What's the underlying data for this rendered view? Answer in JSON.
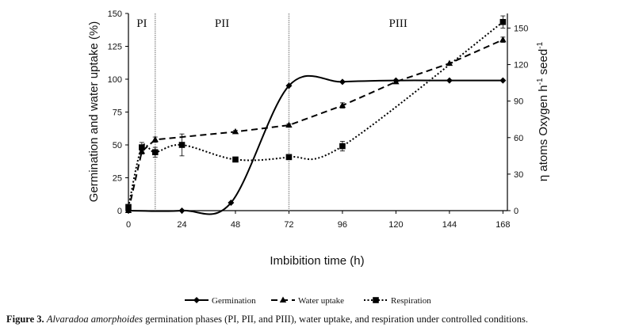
{
  "chart_data": {
    "type": "line",
    "xlabel": "Imbibition time (h)",
    "ylabel_left": "Germination and water uptake  (%)",
    "ylabel_right": "η atoms Oxygen h⁻¹ seed⁻¹",
    "x_ticks": [
      0,
      24,
      48,
      72,
      96,
      120,
      144,
      168
    ],
    "y_left_ticks": [
      0,
      25,
      50,
      75,
      100,
      125,
      150
    ],
    "y_right_ticks": [
      0,
      30,
      60,
      90,
      120,
      150
    ],
    "xlim": [
      0,
      170
    ],
    "ylim_left": [
      0,
      150
    ],
    "ylim_right": [
      0,
      162
    ],
    "phases": [
      {
        "label": "PI",
        "x_start": 0,
        "x_end": 12
      },
      {
        "label": "PII",
        "x_start": 12,
        "x_end": 72
      },
      {
        "label": "PIII",
        "x_start": 72,
        "x_end": 170
      }
    ],
    "series": [
      {
        "name": "Germination",
        "axis": "left",
        "marker": "diamond",
        "style": "solid",
        "smooth": true,
        "x": [
          0,
          24,
          46,
          72,
          96,
          120,
          144,
          168
        ],
        "y": [
          0,
          0,
          6,
          95,
          98,
          99,
          99,
          99
        ]
      },
      {
        "name": "Water uptake",
        "axis": "left",
        "marker": "triangle",
        "style": "dashed",
        "smooth": false,
        "x": [
          0,
          6,
          12,
          48,
          72,
          96,
          120,
          144,
          168
        ],
        "y": [
          0,
          45,
          54,
          60,
          65,
          80,
          98,
          112,
          130
        ],
        "yerr": [
          0,
          2,
          2,
          1,
          1,
          2,
          0,
          0,
          2
        ]
      },
      {
        "name": "Respiration",
        "axis": "right",
        "marker": "square",
        "style": "dotted",
        "smooth": true,
        "x": [
          0,
          6,
          12,
          24,
          48,
          72,
          96,
          168
        ],
        "y": [
          3,
          52,
          48,
          54,
          42,
          44,
          53,
          155
        ],
        "yerr": [
          0,
          4,
          4,
          9,
          2,
          2,
          4,
          5
        ]
      }
    ]
  },
  "caption": {
    "label": "Figure 3.",
    "species": "Alvaradoa amorphoides",
    "text": " germination phases (PI, PII, and PIII), water uptake, and respiration under controlled conditions."
  }
}
